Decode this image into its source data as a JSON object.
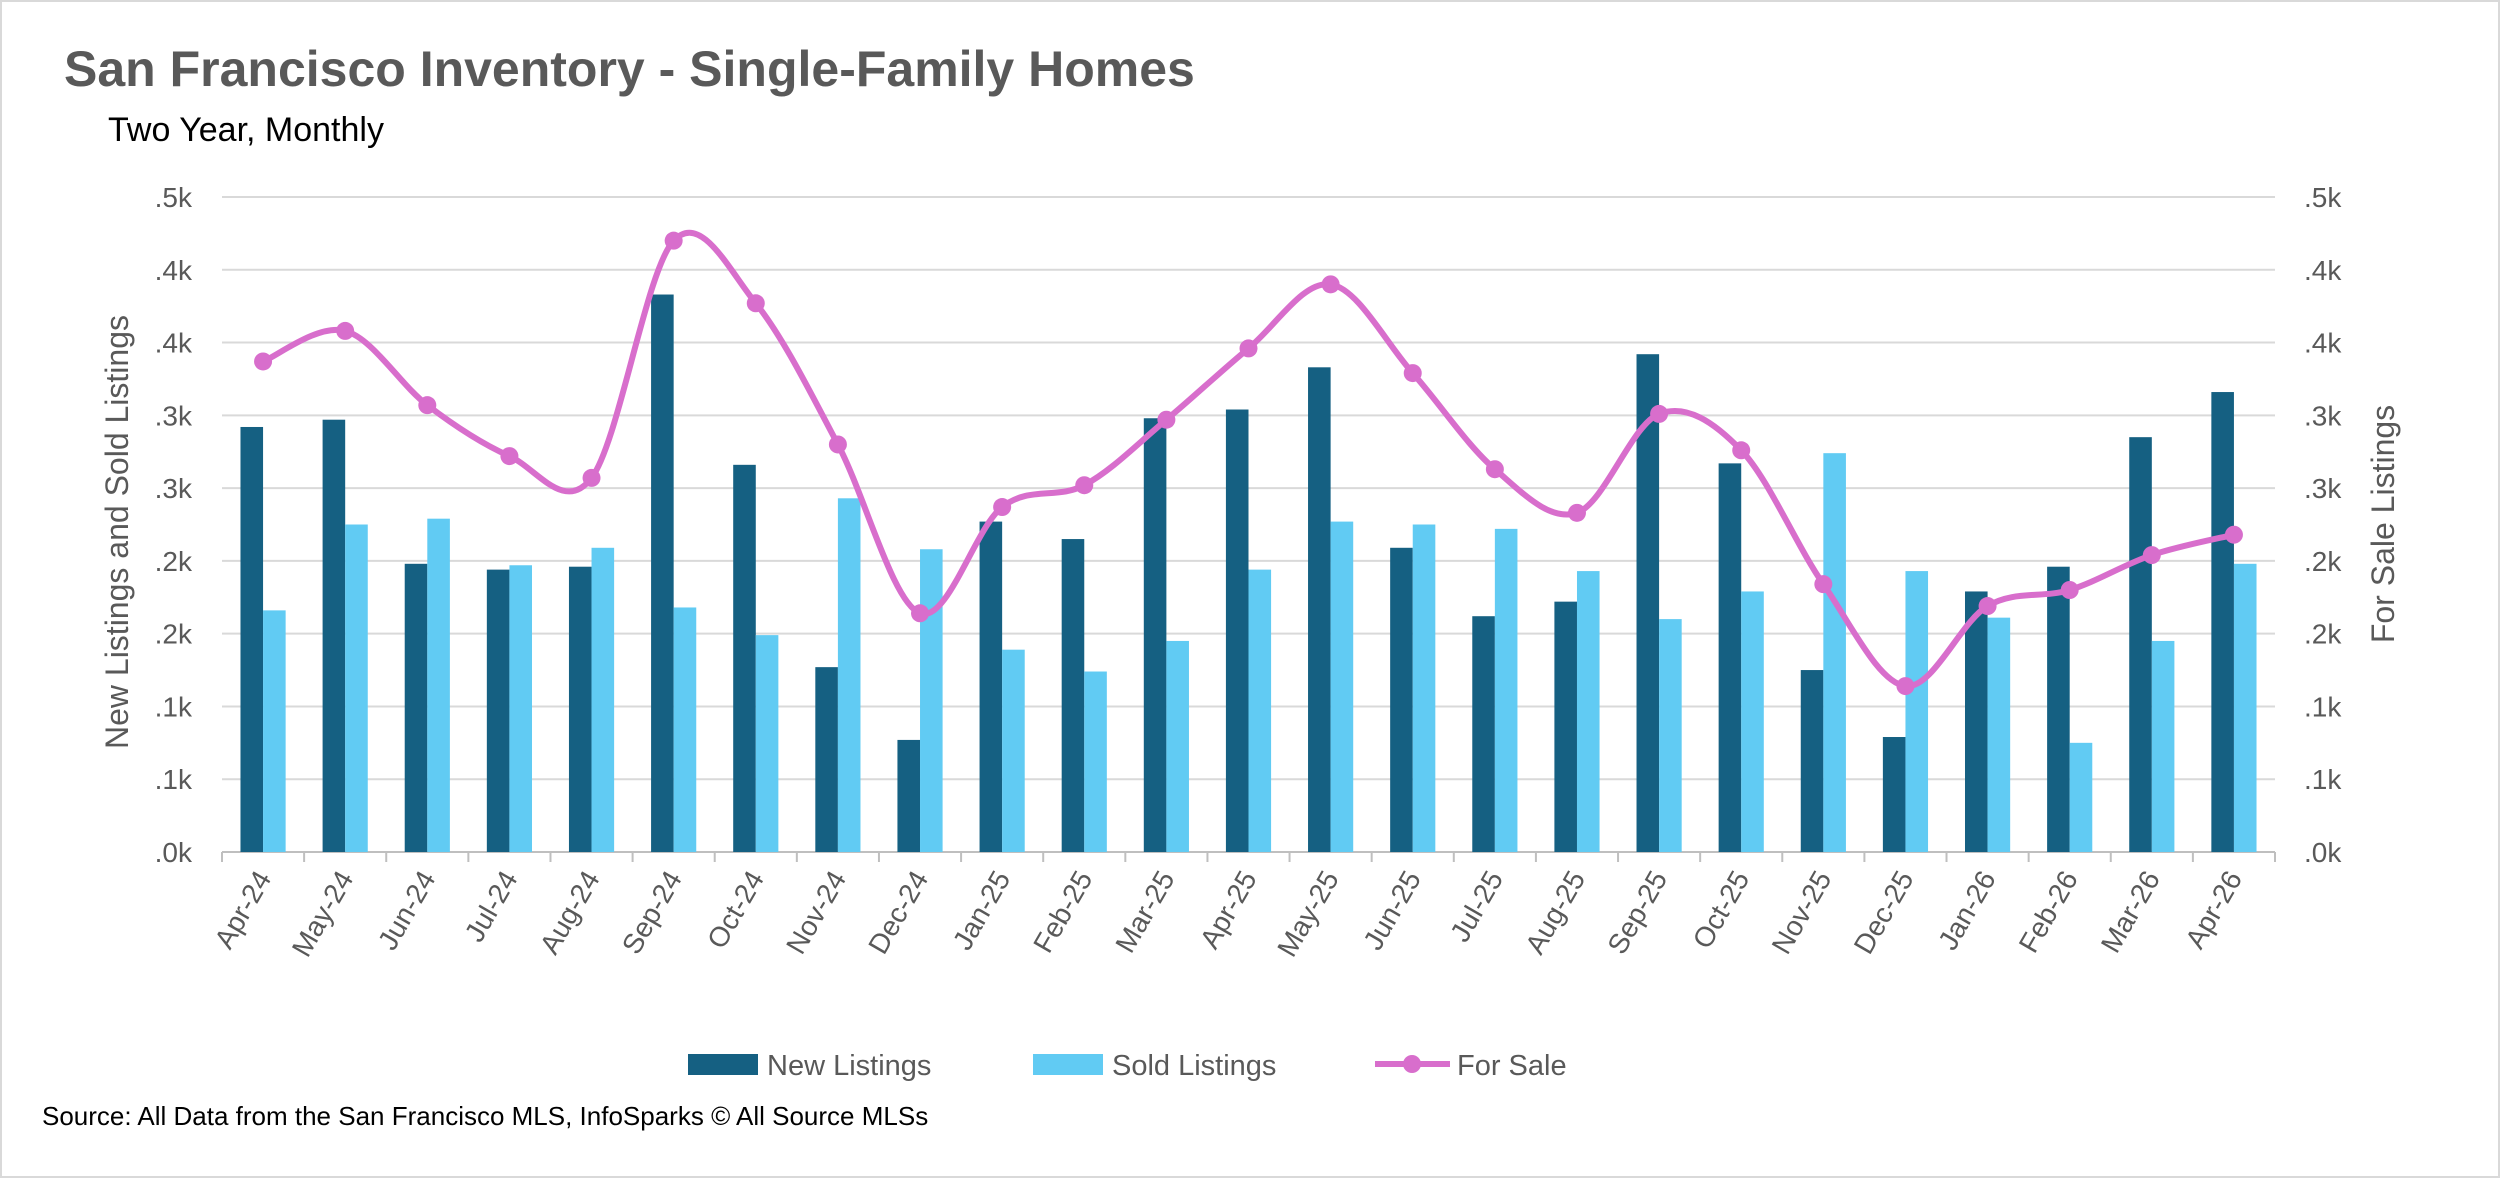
{
  "chart_data": {
    "type": "bar",
    "title": "San Francisco Inventory - Single-Family Homes",
    "subtitle": "Two Year, Monthly",
    "ylabel": "New Listings and Sold Listings",
    "y2label": "For Sale Listings",
    "y_tick_labels": [
      ".0k",
      ".1k",
      ".1k",
      ".2k",
      ".2k",
      ".3k",
      ".3k",
      ".4k",
      ".4k",
      ".5k"
    ],
    "y2_tick_labels": [
      ".0k",
      ".1k",
      ".1k",
      ".2k",
      ".2k",
      ".3k",
      ".3k",
      ".4k",
      ".4k",
      ".5k"
    ],
    "ylim": [
      0,
      450
    ],
    "y2lim": [
      0,
      450
    ],
    "grid": true,
    "legend_position": "bottom",
    "categories": [
      "Apr-24",
      "May-24",
      "Jun-24",
      "Jul-24",
      "Aug-24",
      "Sep-24",
      "Oct-24",
      "Nov-24",
      "Dec-24",
      "Jan-25",
      "Feb-25",
      "Mar-25",
      "Apr-25",
      "May-25",
      "Jun-25",
      "Jul-25",
      "Aug-25",
      "Sep-25",
      "Oct-25",
      "Nov-25",
      "Dec-25",
      "Jan-26",
      "Feb-26",
      "Mar-26",
      "Apr-26"
    ],
    "series": [
      {
        "name": "New Listings",
        "type": "bar",
        "axis": "left",
        "color": "#156082",
        "values": [
          292,
          297,
          198,
          194,
          196,
          383,
          266,
          127,
          77,
          227,
          215,
          298,
          304,
          333,
          209,
          162,
          172,
          342,
          267,
          125,
          79,
          179,
          196,
          285,
          316
        ]
      },
      {
        "name": "Sold Listings",
        "type": "bar",
        "axis": "left",
        "color": "#61cbf3",
        "values": [
          166,
          225,
          229,
          197,
          209,
          168,
          149,
          243,
          208,
          139,
          124,
          145,
          194,
          227,
          225,
          222,
          193,
          160,
          179,
          274,
          193,
          161,
          75,
          145,
          198
        ]
      },
      {
        "name": "For Sale",
        "type": "line",
        "axis": "right",
        "color": "#d86ecc",
        "values": [
          337,
          358,
          307,
          272,
          257,
          420,
          377,
          280,
          164,
          237,
          252,
          297,
          346,
          390,
          329,
          263,
          233,
          301,
          276,
          184,
          114,
          169,
          180,
          204,
          218
        ]
      }
    ]
  },
  "source": "Source: All Data from the San Francisco MLS, InfoSparks © All Source MLSs"
}
